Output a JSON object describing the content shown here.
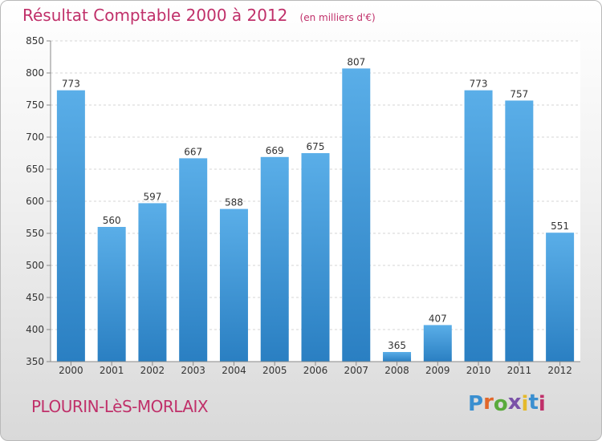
{
  "header": {
    "title": "Résultat Comptable 2000 à 2012",
    "unit": "(en milliers d'€)"
  },
  "footer": {
    "commune": "PLOURIN-LèS-MORLAIX",
    "logo_letters": [
      "P",
      "r",
      "o",
      "x",
      "i",
      "t",
      "i"
    ],
    "logo_colors": [
      "#3a8fd0",
      "#e2672a",
      "#5aaa3c",
      "#7a52a8",
      "#e5b92a",
      "#3a8fd0",
      "#c0306a"
    ]
  },
  "colors": {
    "bar_light": "#5aaee8",
    "bar_dark": "#2a7fc2",
    "accent": "#c0306a"
  },
  "chart_data": {
    "type": "bar",
    "title": "Résultat Comptable 2000 à 2012",
    "categories": [
      "2000",
      "2001",
      "2002",
      "2003",
      "2004",
      "2005",
      "2006",
      "2007",
      "2008",
      "2009",
      "2010",
      "2011",
      "2012"
    ],
    "values": [
      773,
      560,
      597,
      667,
      588,
      669,
      675,
      807,
      365,
      407,
      773,
      757,
      551
    ],
    "ylim": [
      350,
      850
    ],
    "yticks": [
      350,
      400,
      450,
      500,
      550,
      600,
      650,
      700,
      750,
      800,
      850
    ],
    "grid": true,
    "xlabel": "",
    "ylabel": ""
  }
}
